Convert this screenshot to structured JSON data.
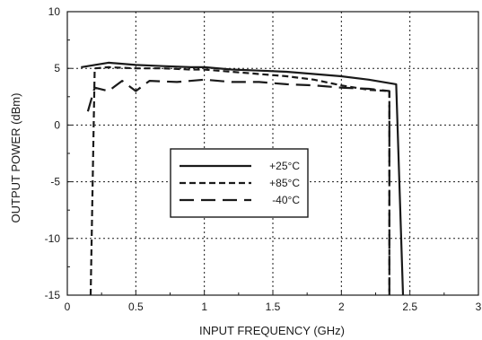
{
  "chart_data": {
    "type": "line",
    "title": "",
    "xlabel": "INPUT FREQUENCY (GHz)",
    "ylabel": "OUTPUT POWER (dBm)",
    "xlim": [
      0,
      3
    ],
    "ylim": [
      -15,
      10
    ],
    "x_ticks": [
      0,
      0.5,
      1,
      1.5,
      2,
      2.5,
      3
    ],
    "x_tick_labels": [
      "0",
      "0.5",
      "1",
      "1.5",
      "2",
      "2.5",
      "3"
    ],
    "y_ticks": [
      -15,
      -10,
      -5,
      0,
      5,
      10
    ],
    "y_tick_labels": [
      "-15",
      "-10",
      "-5",
      "0",
      "5",
      "10"
    ],
    "grid": true,
    "legend_position": "center-left",
    "series": [
      {
        "name": "+25°C",
        "line_style": "solid",
        "color": "#1a1a1a",
        "points": [
          [
            0.1,
            5.1
          ],
          [
            0.2,
            5.3
          ],
          [
            0.3,
            5.5
          ],
          [
            0.5,
            5.3
          ],
          [
            0.7,
            5.2
          ],
          [
            0.9,
            5.1
          ],
          [
            1.0,
            5.1
          ],
          [
            1.2,
            4.9
          ],
          [
            1.4,
            4.8
          ],
          [
            1.6,
            4.7
          ],
          [
            1.8,
            4.5
          ],
          [
            2.0,
            4.3
          ],
          [
            2.2,
            4.0
          ],
          [
            2.4,
            3.6
          ],
          [
            2.45,
            -15
          ]
        ]
      },
      {
        "name": "+85°C",
        "line_style": "dashed",
        "color": "#1a1a1a",
        "points": [
          [
            0.17,
            -15
          ],
          [
            0.2,
            5.0
          ],
          [
            0.3,
            5.1
          ],
          [
            0.5,
            5.0
          ],
          [
            0.7,
            5.0
          ],
          [
            0.9,
            4.9
          ],
          [
            1.0,
            4.9
          ],
          [
            1.2,
            4.7
          ],
          [
            1.4,
            4.5
          ],
          [
            1.6,
            4.3
          ],
          [
            1.8,
            4.0
          ],
          [
            2.0,
            3.5
          ],
          [
            2.2,
            3.1
          ],
          [
            2.35,
            3.0
          ],
          [
            2.35,
            -15
          ]
        ]
      },
      {
        "name": "-40°C",
        "line_style": "long-dash",
        "color": "#1a1a1a",
        "points": [
          [
            0.15,
            1.2
          ],
          [
            0.2,
            3.3
          ],
          [
            0.3,
            3.0
          ],
          [
            0.4,
            3.9
          ],
          [
            0.5,
            3.0
          ],
          [
            0.6,
            3.9
          ],
          [
            0.8,
            3.8
          ],
          [
            1.0,
            4.0
          ],
          [
            1.2,
            3.8
          ],
          [
            1.4,
            3.8
          ],
          [
            1.6,
            3.6
          ],
          [
            1.8,
            3.5
          ],
          [
            2.0,
            3.3
          ],
          [
            2.2,
            3.2
          ],
          [
            2.35,
            3.0
          ],
          [
            2.35,
            -15
          ]
        ]
      }
    ]
  }
}
